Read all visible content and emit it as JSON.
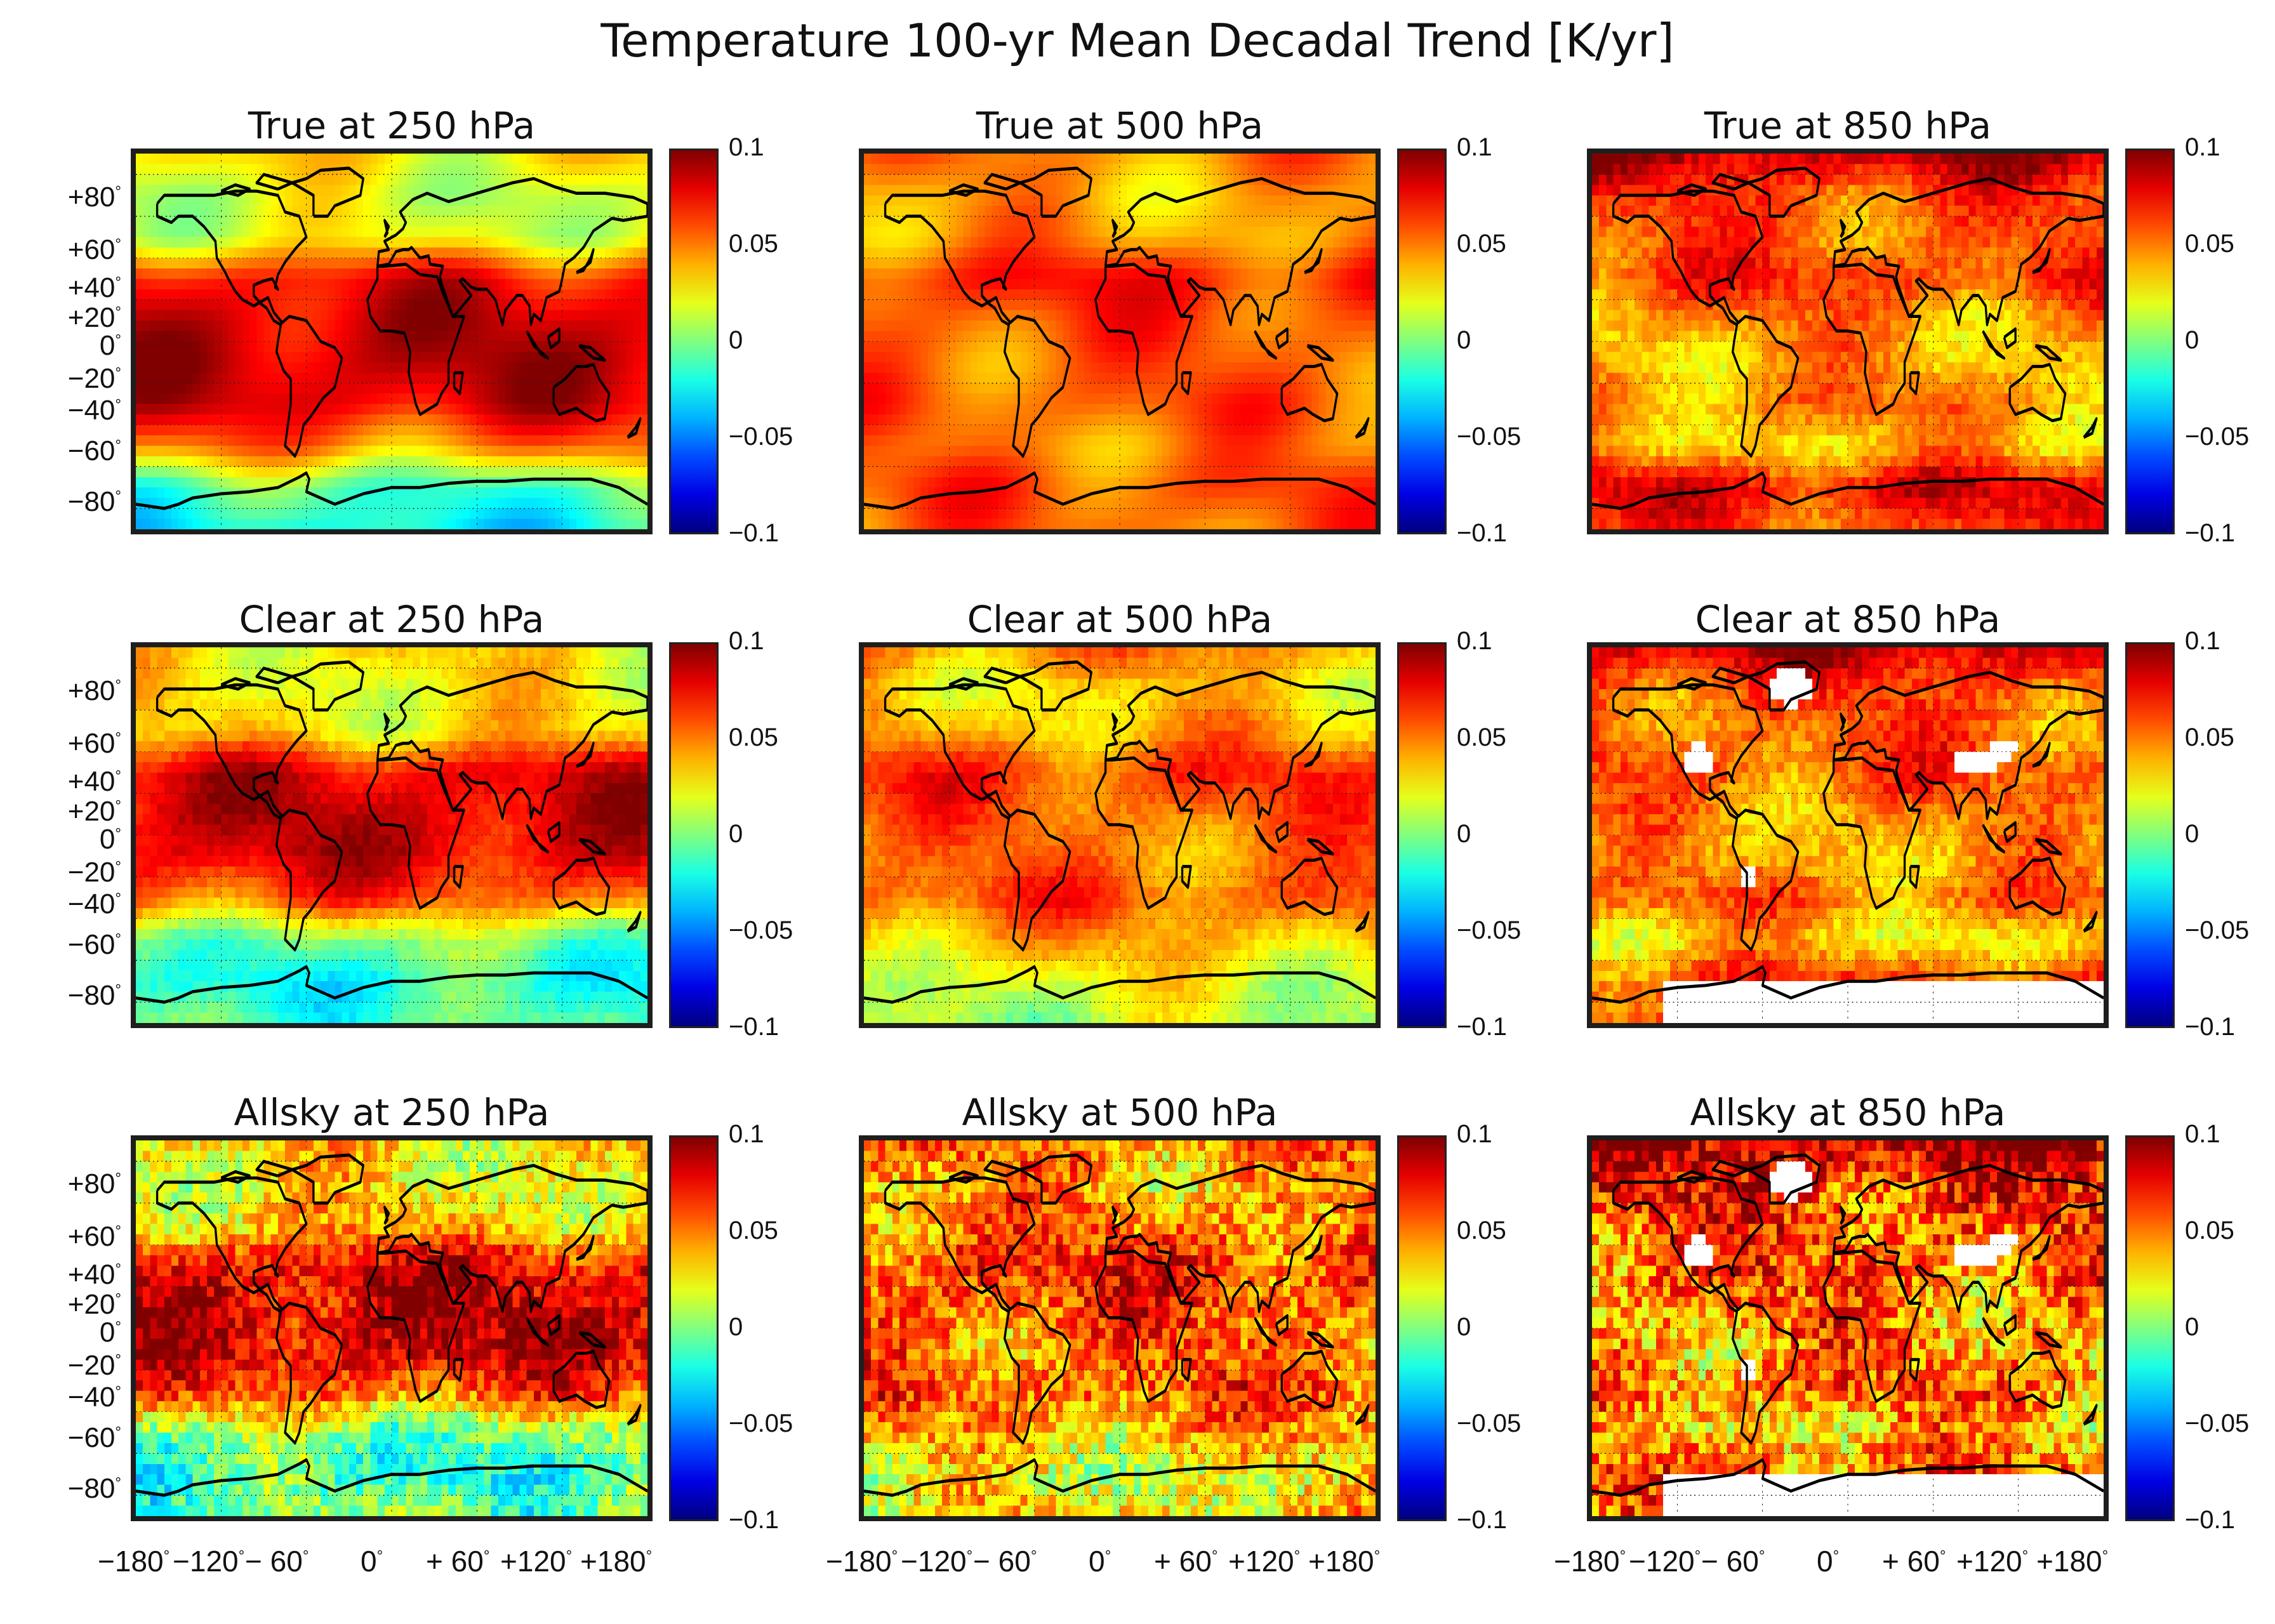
{
  "chart_data": {
    "type": "heatmap",
    "title": "Temperature 100-yr Mean Decadal Trend [K/yr]",
    "colormap": "jet",
    "colors": {
      "low": "#00008f",
      "mid": "#0fd68c",
      "high": "#800000",
      "missing": "#ffffff",
      "coastline": "#000000"
    },
    "color_range": [
      -0.1,
      0.1
    ],
    "colorbar_ticks": [
      "0.1",
      "0.05",
      "0",
      "−0.05",
      "−0.1"
    ],
    "lat_ticks": [
      "+80",
      "+60",
      "+40",
      "+20",
      "0",
      "−20",
      "−40",
      "−60",
      "−80"
    ],
    "lon_ticks": [
      "−180",
      "−120",
      "− 60",
      "0",
      "+ 60",
      "+120",
      "+180"
    ],
    "degree_symbol": "°",
    "xlim": [
      -180,
      180
    ],
    "ylim": [
      -90,
      90
    ],
    "grid": true,
    "panels": [
      {
        "title": "True at 250 hPa",
        "product": "True",
        "pressure_hPa": 250,
        "zonal_trend": [
          0.03,
          0.015,
          0.02,
          0.075,
          0.085,
          0.088,
          0.082,
          0.05,
          -0.01,
          -0.025
        ],
        "noise": 0.0
      },
      {
        "title": "True at 500 hPa",
        "product": "True",
        "pressure_hPa": 500,
        "zonal_trend": [
          0.05,
          0.04,
          0.045,
          0.07,
          0.06,
          0.055,
          0.058,
          0.05,
          0.06,
          0.055
        ],
        "noise": 0.0
      },
      {
        "title": "True at 850 hPa",
        "product": "True",
        "pressure_hPa": 850,
        "zonal_trend": [
          0.09,
          0.06,
          0.055,
          0.065,
          0.045,
          0.04,
          0.05,
          0.035,
          0.08,
          0.06
        ],
        "noise": 0.01
      },
      {
        "title": "Clear at 250 hPa",
        "product": "Clear",
        "pressure_hPa": 250,
        "zonal_trend": [
          0.03,
          0.025,
          0.03,
          0.08,
          0.085,
          0.082,
          0.06,
          0.0,
          -0.02,
          -0.01
        ],
        "noise": 0.005
      },
      {
        "title": "Clear at 500 hPa",
        "product": "Clear",
        "pressure_hPa": 500,
        "zonal_trend": [
          0.05,
          0.03,
          0.04,
          0.065,
          0.055,
          0.05,
          0.06,
          0.04,
          0.02,
          0.01
        ],
        "noise": 0.006
      },
      {
        "title": "Clear at 850 hPa",
        "product": "Clear",
        "pressure_hPa": 850,
        "zonal_trend": [
          0.09,
          0.06,
          0.055,
          0.06,
          0.045,
          0.04,
          0.055,
          0.03,
          0.065,
          0.06
        ],
        "noise": 0.012
      },
      {
        "title": "Allsky at 250 hPa",
        "product": "Allsky",
        "pressure_hPa": 250,
        "zonal_trend": [
          0.03,
          0.025,
          0.035,
          0.08,
          0.085,
          0.085,
          0.06,
          0.0,
          -0.015,
          0.0
        ],
        "noise": 0.02
      },
      {
        "title": "Allsky at 500 hPa",
        "product": "Allsky",
        "pressure_hPa": 500,
        "zonal_trend": [
          0.055,
          0.04,
          0.05,
          0.07,
          0.06,
          0.05,
          0.06,
          0.04,
          0.02,
          0.03
        ],
        "noise": 0.025
      },
      {
        "title": "Allsky at 850 hPa",
        "product": "Allsky",
        "pressure_hPa": 850,
        "zonal_trend": [
          0.095,
          0.07,
          0.06,
          0.06,
          0.05,
          0.045,
          0.055,
          0.035,
          0.06,
          0.05
        ],
        "noise": 0.03
      }
    ]
  }
}
